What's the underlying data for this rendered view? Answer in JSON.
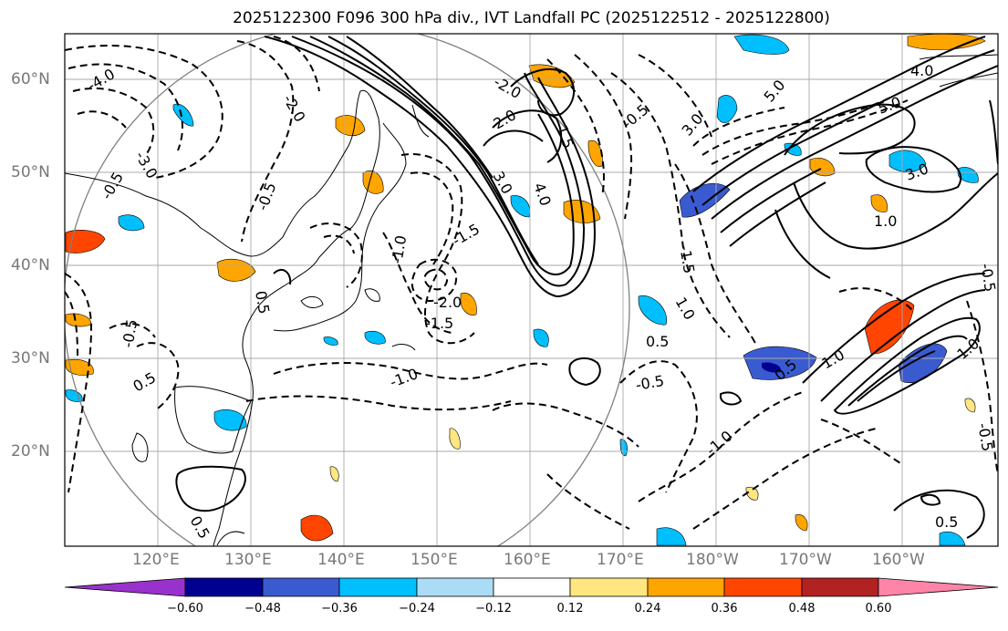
{
  "title": "2025122300 F096 300 hPa div., IVT Landfall PC (2025122512 - 2025122800)",
  "map": {
    "longitude_labels": [
      "120°E",
      "130°E",
      "140°E",
      "150°E",
      "160°E",
      "170°E",
      "180°W",
      "170°W",
      "160°W"
    ],
    "latitude_labels": [
      "60°N",
      "50°N",
      "40°N",
      "30°N",
      "20°N"
    ],
    "contour_labels": [
      "-4.0",
      "-3.0",
      "-2.0",
      "-1.5",
      "-1.0",
      "-0.5",
      "0.5",
      "1.0",
      "1.5",
      "2.0",
      "3.0",
      "4.0",
      "5.0"
    ],
    "contour_label_instances": [
      {
        "text": "-4.0"
      },
      {
        "text": "-2.0"
      },
      {
        "text": "-0.5"
      },
      {
        "text": "-3.0"
      },
      {
        "text": "-0.5"
      },
      {
        "text": "-2.0"
      },
      {
        "text": "-1.5"
      },
      {
        "text": "-1.0"
      },
      {
        "text": "-2.0"
      },
      {
        "text": "-1.5"
      },
      {
        "text": "-1.0"
      },
      {
        "text": "-0.5"
      },
      {
        "text": "-1.0"
      },
      {
        "text": "-1.5"
      },
      {
        "text": "-0.5"
      },
      {
        "text": "0.5"
      },
      {
        "text": "1.0"
      },
      {
        "text": "2.0"
      },
      {
        "text": "3.0"
      },
      {
        "text": "4.0"
      },
      {
        "text": "1.5"
      },
      {
        "text": "5.0"
      },
      {
        "text": "4.0"
      },
      {
        "text": "5.0"
      },
      {
        "text": "3.0"
      },
      {
        "text": "3.0"
      },
      {
        "text": "1.0"
      },
      {
        "text": "1.0"
      },
      {
        "text": "0.5"
      },
      {
        "text": "0.5"
      },
      {
        "text": "-0.5"
      },
      {
        "text": "0.5"
      },
      {
        "text": "0.5"
      },
      {
        "text": "-0.5"
      },
      {
        "text": "-0.5"
      },
      {
        "text": "1.0"
      },
      {
        "text": "0.5"
      }
    ]
  },
  "colorbar": {
    "tick_labels": [
      "−0.60",
      "−0.48",
      "−0.36",
      "−0.24",
      "−0.12",
      "0.12",
      "0.24",
      "0.36",
      "0.48",
      "0.60"
    ],
    "colors": [
      "#9932cc",
      "#000090",
      "#3a5bd0",
      "#00bfff",
      "#abdcf5",
      "#ffffff",
      "#ffe680",
      "#ffa500",
      "#ff4500",
      "#b22222",
      "#ff85a8"
    ]
  }
}
